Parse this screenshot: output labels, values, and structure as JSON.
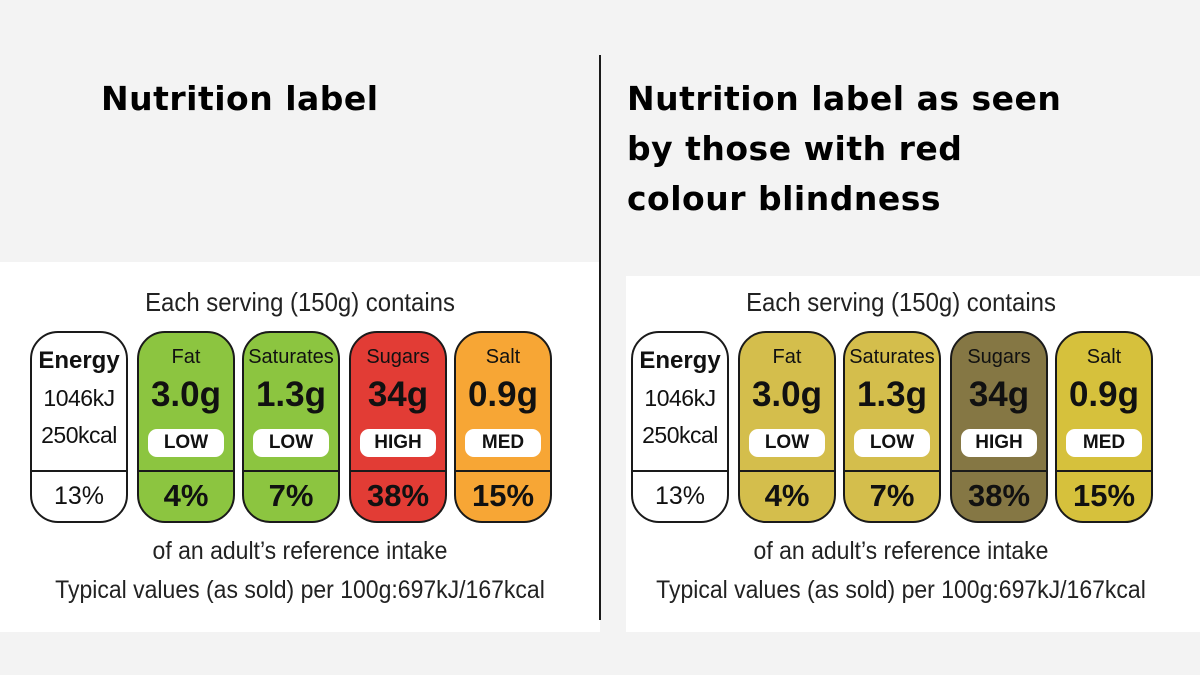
{
  "left_title": "Nutrition label",
  "right_title": "Nutrition label as seen by those with red colour blindness",
  "label": {
    "header": "Each serving (150g) contains",
    "energy": {
      "name": "Energy",
      "kj": "1046kJ",
      "kcal": "250kcal",
      "percent": "13%"
    },
    "nutrients": [
      {
        "name": "Fat",
        "amount": "3.0g",
        "level": "LOW",
        "percent": "4%"
      },
      {
        "name": "Saturates",
        "amount": "1.3g",
        "level": "LOW",
        "percent": "7%"
      },
      {
        "name": "Sugars",
        "amount": "34g",
        "level": "HIGH",
        "percent": "38%"
      },
      {
        "name": "Salt",
        "amount": "0.9g",
        "level": "MED",
        "percent": "15%"
      }
    ],
    "reference_note": "of an adult’s reference intake",
    "typical_values": "Typical values (as sold) per 100g:697kJ/167kcal"
  },
  "colors": {
    "normal": [
      "#8cc540",
      "#8cc540",
      "#e23c35",
      "#f7a635"
    ],
    "red_colour_blind": [
      "#d4be4c",
      "#d4be4c",
      "#857744",
      "#d6c13c"
    ]
  }
}
